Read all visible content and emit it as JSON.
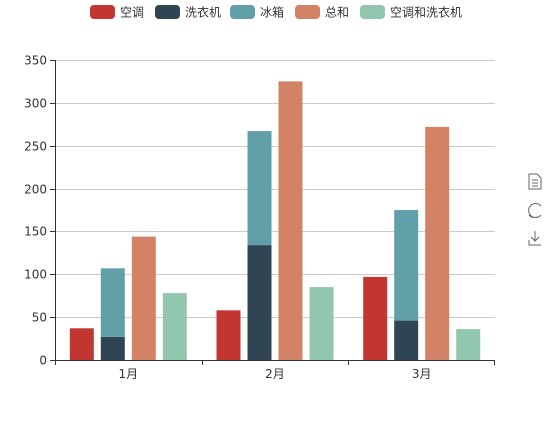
{
  "colors": {
    "aircon": "#c23531",
    "washer": "#2f4554",
    "fridge": "#61a0a8",
    "total": "#d48265",
    "aircon_washer": "#91c7ae",
    "axis": "#333333",
    "grid": "#cccccc",
    "toolbox_icon": "#666666"
  },
  "chart_data": {
    "type": "bar",
    "categories": [
      "1月",
      "2月",
      "3月"
    ],
    "ylim": [
      0,
      350
    ],
    "y_ticks": [
      0,
      50,
      100,
      150,
      200,
      250,
      300,
      350
    ],
    "grid": true,
    "legend_position": "top-center",
    "series": [
      {
        "name": "空调",
        "key": "aircon",
        "values": [
          37,
          58,
          97
        ],
        "stack": "aircon"
      },
      {
        "name": "洗衣机",
        "key": "washer",
        "values": [
          27,
          134,
          46
        ],
        "stack": "appliances"
      },
      {
        "name": "冰箱",
        "key": "fridge",
        "values": [
          80,
          133,
          129
        ],
        "stack": "appliances"
      },
      {
        "name": "总和",
        "key": "total",
        "values": [
          144,
          325,
          272
        ],
        "stack": "total"
      },
      {
        "name": "空调和洗衣机",
        "key": "aircon_washer",
        "values": [
          78,
          85,
          36
        ],
        "stack": "aircon_washer"
      }
    ]
  },
  "legend": {
    "items": [
      {
        "label": "空调",
        "color_key": "aircon"
      },
      {
        "label": "洗衣机",
        "color_key": "washer"
      },
      {
        "label": "冰箱",
        "color_key": "fridge"
      },
      {
        "label": "总和",
        "color_key": "total"
      },
      {
        "label": "空调和洗衣机",
        "color_key": "aircon_washer"
      }
    ]
  },
  "toolbox": {
    "items": [
      {
        "name": "data-view-icon"
      },
      {
        "name": "restore-icon"
      },
      {
        "name": "save-image-icon"
      }
    ]
  }
}
